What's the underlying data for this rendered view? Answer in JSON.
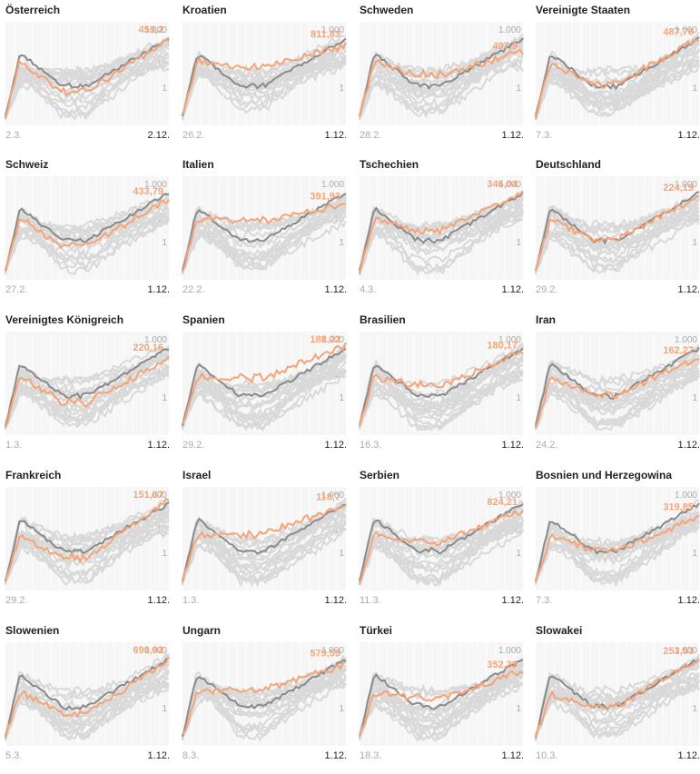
{
  "colors": {
    "highlight": "#f5a477",
    "reference": "#8a8a8a",
    "background_lines": "#d9d9d9",
    "plot_background": "#f6f6f6",
    "gridline": "#ffffff",
    "tick_label": "#aaaaaa"
  },
  "chart_data": {
    "type": "line",
    "yscale": "log",
    "y_ticks": [
      "1.000",
      "10",
      "1"
    ],
    "panels": [
      {
        "name": "Österreich",
        "value_label": "459,2",
        "start_date": "2.3.",
        "end_date": "2.12."
      },
      {
        "name": "Kroatien",
        "value_label": "811,83",
        "start_date": "26.2.",
        "end_date": "1.12."
      },
      {
        "name": "Schweden",
        "value_label": "497,9",
        "start_date": "28.2.",
        "end_date": "1.12."
      },
      {
        "name": "Vereinigte Staaten",
        "value_label": "487,76",
        "start_date": "7.3.",
        "end_date": "1.12."
      },
      {
        "name": "Schweiz",
        "value_label": "433,79",
        "start_date": "27.2.",
        "end_date": "1.12."
      },
      {
        "name": "Italien",
        "value_label": "391,93",
        "start_date": "22.2.",
        "end_date": "1.12."
      },
      {
        "name": "Tschechien",
        "value_label": "346,04",
        "start_date": "4.3.",
        "end_date": "1.12."
      },
      {
        "name": "Deutschland",
        "value_label": "224,19",
        "start_date": "29.2.",
        "end_date": "1.12."
      },
      {
        "name": "Vereinigtes Königreich",
        "value_label": "220,16",
        "start_date": "1.3.",
        "end_date": "1.12."
      },
      {
        "name": "Spanien",
        "value_label": "188,22",
        "start_date": "29.2.",
        "end_date": "1.12."
      },
      {
        "name": "Brasilien",
        "value_label": "180,17",
        "start_date": "16.3.",
        "end_date": "1.12."
      },
      {
        "name": "Iran",
        "value_label": "162,27",
        "start_date": "24.2.",
        "end_date": "1.12."
      },
      {
        "name": "Frankreich",
        "value_label": "151,67",
        "start_date": "29.2.",
        "end_date": "1.12."
      },
      {
        "name": "Israel",
        "value_label": "118,7",
        "start_date": "1.3.",
        "end_date": "1.12."
      },
      {
        "name": "Serbien",
        "value_label": "824,21",
        "start_date": "11.3.",
        "end_date": "1.12."
      },
      {
        "name": "Bosnien und Herzegowina",
        "value_label": "319,85",
        "start_date": "7.3.",
        "end_date": "1.12."
      },
      {
        "name": "Slowenien",
        "value_label": "690,92",
        "start_date": "5.3.",
        "end_date": "1.12."
      },
      {
        "name": "Ungarn",
        "value_label": "579,59",
        "start_date": "8.3.",
        "end_date": "1.12."
      },
      {
        "name": "Türkei",
        "value_label": "352,39",
        "start_date": "18.3.",
        "end_date": "1.12."
      },
      {
        "name": "Slowakei",
        "value_label": "253,53",
        "start_date": "10.3.",
        "end_date": "1.12."
      }
    ]
  }
}
